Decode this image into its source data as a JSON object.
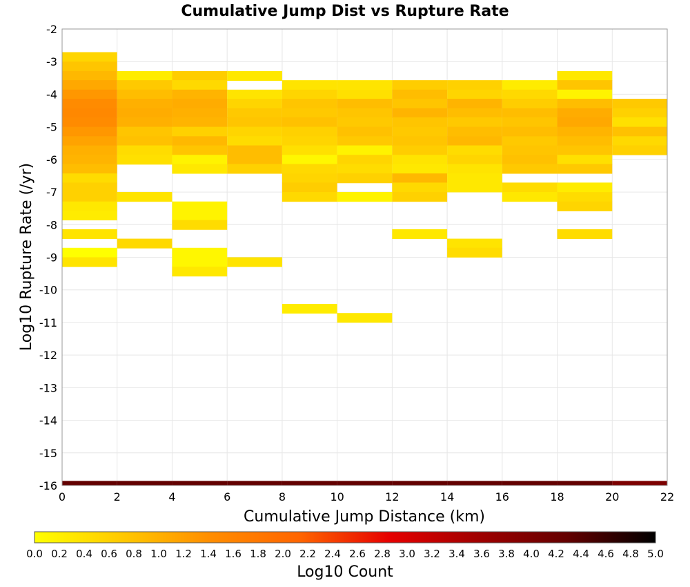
{
  "chart_data": {
    "type": "heatmap",
    "title": "Cumulative Jump Dist vs Rupture Rate",
    "xlabel": "Cumulative Jump Distance (km)",
    "ylabel": "Log10 Rupture Rate (/yr)",
    "xlim": [
      0,
      22
    ],
    "ylim": [
      -16,
      -2
    ],
    "x_ticks": [
      "0",
      "2",
      "4",
      "6",
      "8",
      "10",
      "12",
      "14",
      "16",
      "18",
      "20",
      "22"
    ],
    "y_ticks": [
      "-2",
      "-3",
      "-4",
      "-5",
      "-6",
      "-7",
      "-8",
      "-9",
      "-10",
      "-11",
      "-12",
      "-13",
      "-14",
      "-15",
      "-16"
    ],
    "x_bin_width": 2,
    "y_bin_height": 0.286,
    "colorbar": {
      "label": "Log10 Count",
      "range": [
        0.0,
        5.0
      ],
      "ticks": [
        "0.0",
        "0.2",
        "0.4",
        "0.6",
        "0.8",
        "1.0",
        "1.2",
        "1.4",
        "1.6",
        "1.8",
        "2.0",
        "2.2",
        "2.4",
        "2.6",
        "2.8",
        "3.0",
        "3.2",
        "3.4",
        "3.6",
        "3.8",
        "4.0",
        "4.2",
        "4.4",
        "4.6",
        "4.8",
        "5.0"
      ],
      "colors": [
        "#ffff00",
        "#ffc800",
        "#ff8c00",
        "#ff6400",
        "#e60000",
        "#a00000",
        "#640000",
        "#000000"
      ]
    },
    "cells": [
      {
        "x": 0,
        "y": -2.71,
        "v": 0.55
      },
      {
        "x": 0,
        "y": -3.0,
        "v": 0.75
      },
      {
        "x": 0,
        "y": -3.29,
        "v": 0.9
      },
      {
        "x": 0,
        "y": -3.57,
        "v": 1.1
      },
      {
        "x": 0,
        "y": -3.86,
        "v": 1.3
      },
      {
        "x": 0,
        "y": -4.14,
        "v": 1.45
      },
      {
        "x": 0,
        "y": -4.43,
        "v": 1.5
      },
      {
        "x": 0,
        "y": -4.71,
        "v": 1.45
      },
      {
        "x": 0,
        "y": -5.0,
        "v": 1.3
      },
      {
        "x": 0,
        "y": -5.29,
        "v": 1.15
      },
      {
        "x": 0,
        "y": -5.57,
        "v": 1.0
      },
      {
        "x": 0,
        "y": -5.86,
        "v": 0.95
      },
      {
        "x": 0,
        "y": -6.14,
        "v": 0.85
      },
      {
        "x": 0,
        "y": -6.43,
        "v": 0.45
      },
      {
        "x": 0,
        "y": -6.71,
        "v": 0.6
      },
      {
        "x": 0,
        "y": -7.0,
        "v": 0.6
      },
      {
        "x": 0,
        "y": -7.29,
        "v": 0.3
      },
      {
        "x": 0,
        "y": -7.57,
        "v": 0.25
      },
      {
        "x": 0,
        "y": -8.14,
        "v": 0.35
      },
      {
        "x": 0,
        "y": -8.71,
        "v": 0.0
      },
      {
        "x": 0,
        "y": -9.0,
        "v": 0.35
      },
      {
        "x": 2,
        "y": -3.29,
        "v": 0.25
      },
      {
        "x": 2,
        "y": -3.57,
        "v": 0.7
      },
      {
        "x": 2,
        "y": -3.86,
        "v": 0.85
      },
      {
        "x": 2,
        "y": -4.14,
        "v": 1.0
      },
      {
        "x": 2,
        "y": -4.43,
        "v": 1.05
      },
      {
        "x": 2,
        "y": -4.71,
        "v": 1.0
      },
      {
        "x": 2,
        "y": -5.0,
        "v": 0.75
      },
      {
        "x": 2,
        "y": -5.29,
        "v": 0.8
      },
      {
        "x": 2,
        "y": -5.57,
        "v": 0.45
      },
      {
        "x": 2,
        "y": -5.86,
        "v": 0.4
      },
      {
        "x": 2,
        "y": -7.0,
        "v": 0.35
      },
      {
        "x": 2,
        "y": -8.43,
        "v": 0.5
      },
      {
        "x": 4,
        "y": -3.29,
        "v": 0.65
      },
      {
        "x": 4,
        "y": -3.57,
        "v": 0.5
      },
      {
        "x": 4,
        "y": -3.86,
        "v": 0.95
      },
      {
        "x": 4,
        "y": -4.14,
        "v": 1.05
      },
      {
        "x": 4,
        "y": -4.43,
        "v": 1.0
      },
      {
        "x": 4,
        "y": -4.71,
        "v": 0.95
      },
      {
        "x": 4,
        "y": -5.0,
        "v": 0.6
      },
      {
        "x": 4,
        "y": -5.29,
        "v": 0.9
      },
      {
        "x": 4,
        "y": -5.57,
        "v": 0.75
      },
      {
        "x": 4,
        "y": -5.86,
        "v": 0.15
      },
      {
        "x": 4,
        "y": -6.14,
        "v": 0.3
      },
      {
        "x": 4,
        "y": -7.29,
        "v": 0.15
      },
      {
        "x": 4,
        "y": -7.57,
        "v": 0.15
      },
      {
        "x": 4,
        "y": -7.86,
        "v": 0.45
      },
      {
        "x": 4,
        "y": -8.71,
        "v": 0.1
      },
      {
        "x": 4,
        "y": -9.0,
        "v": 0.1
      },
      {
        "x": 4,
        "y": -9.29,
        "v": 0.3
      },
      {
        "x": 6,
        "y": -3.29,
        "v": 0.3
      },
      {
        "x": 6,
        "y": -3.86,
        "v": 0.35
      },
      {
        "x": 6,
        "y": -4.14,
        "v": 0.55
      },
      {
        "x": 6,
        "y": -4.43,
        "v": 0.7
      },
      {
        "x": 6,
        "y": -4.71,
        "v": 0.75
      },
      {
        "x": 6,
        "y": -5.0,
        "v": 0.55
      },
      {
        "x": 6,
        "y": -5.29,
        "v": 0.45
      },
      {
        "x": 6,
        "y": -5.57,
        "v": 0.85
      },
      {
        "x": 6,
        "y": -5.86,
        "v": 0.85
      },
      {
        "x": 6,
        "y": -6.14,
        "v": 0.6
      },
      {
        "x": 6,
        "y": -9.0,
        "v": 0.35
      },
      {
        "x": 8,
        "y": -3.57,
        "v": 0.35
      },
      {
        "x": 8,
        "y": -3.86,
        "v": 0.55
      },
      {
        "x": 8,
        "y": -4.14,
        "v": 0.75
      },
      {
        "x": 8,
        "y": -4.43,
        "v": 0.7
      },
      {
        "x": 8,
        "y": -4.71,
        "v": 0.8
      },
      {
        "x": 8,
        "y": -5.0,
        "v": 0.6
      },
      {
        "x": 8,
        "y": -5.29,
        "v": 0.55
      },
      {
        "x": 8,
        "y": -5.57,
        "v": 0.4
      },
      {
        "x": 8,
        "y": -5.86,
        "v": 0.1
      },
      {
        "x": 8,
        "y": -6.14,
        "v": 0.5
      },
      {
        "x": 8,
        "y": -6.43,
        "v": 0.55
      },
      {
        "x": 8,
        "y": -6.71,
        "v": 0.65
      },
      {
        "x": 8,
        "y": -7.0,
        "v": 0.5
      },
      {
        "x": 8,
        "y": -10.43,
        "v": 0.25
      },
      {
        "x": 10,
        "y": -3.57,
        "v": 0.35
      },
      {
        "x": 10,
        "y": -3.86,
        "v": 0.4
      },
      {
        "x": 10,
        "y": -4.14,
        "v": 0.85
      },
      {
        "x": 10,
        "y": -4.43,
        "v": 0.75
      },
      {
        "x": 10,
        "y": -4.71,
        "v": 0.7
      },
      {
        "x": 10,
        "y": -5.0,
        "v": 0.8
      },
      {
        "x": 10,
        "y": -5.29,
        "v": 0.7
      },
      {
        "x": 10,
        "y": -5.57,
        "v": 0.15
      },
      {
        "x": 10,
        "y": -5.86,
        "v": 0.55
      },
      {
        "x": 10,
        "y": -6.14,
        "v": 0.45
      },
      {
        "x": 10,
        "y": -6.43,
        "v": 0.6
      },
      {
        "x": 10,
        "y": -7.0,
        "v": 0.15
      },
      {
        "x": 10,
        "y": -10.71,
        "v": 0.3
      },
      {
        "x": 12,
        "y": -3.57,
        "v": 0.65
      },
      {
        "x": 12,
        "y": -3.86,
        "v": 0.85
      },
      {
        "x": 12,
        "y": -4.14,
        "v": 0.75
      },
      {
        "x": 12,
        "y": -4.43,
        "v": 0.95
      },
      {
        "x": 12,
        "y": -4.71,
        "v": 0.75
      },
      {
        "x": 12,
        "y": -5.0,
        "v": 0.7
      },
      {
        "x": 12,
        "y": -5.29,
        "v": 0.75
      },
      {
        "x": 12,
        "y": -5.57,
        "v": 0.65
      },
      {
        "x": 12,
        "y": -5.86,
        "v": 0.35
      },
      {
        "x": 12,
        "y": -6.14,
        "v": 0.3
      },
      {
        "x": 12,
        "y": -6.43,
        "v": 0.9
      },
      {
        "x": 12,
        "y": -6.71,
        "v": 0.5
      },
      {
        "x": 12,
        "y": -7.0,
        "v": 0.6
      },
      {
        "x": 12,
        "y": -8.14,
        "v": 0.3
      },
      {
        "x": 14,
        "y": -3.57,
        "v": 0.6
      },
      {
        "x": 14,
        "y": -3.86,
        "v": 0.55
      },
      {
        "x": 14,
        "y": -4.14,
        "v": 0.95
      },
      {
        "x": 14,
        "y": -4.43,
        "v": 0.85
      },
      {
        "x": 14,
        "y": -4.71,
        "v": 0.7
      },
      {
        "x": 14,
        "y": -5.0,
        "v": 0.85
      },
      {
        "x": 14,
        "y": -5.29,
        "v": 0.9
      },
      {
        "x": 14,
        "y": -5.57,
        "v": 0.45
      },
      {
        "x": 14,
        "y": -5.86,
        "v": 0.55
      },
      {
        "x": 14,
        "y": -6.14,
        "v": 0.35
      },
      {
        "x": 14,
        "y": -6.43,
        "v": 0.3
      },
      {
        "x": 14,
        "y": -6.71,
        "v": 0.3
      },
      {
        "x": 14,
        "y": -8.43,
        "v": 0.35
      },
      {
        "x": 14,
        "y": -8.71,
        "v": 0.45
      },
      {
        "x": 16,
        "y": -3.57,
        "v": 0.25
      },
      {
        "x": 16,
        "y": -3.86,
        "v": 0.5
      },
      {
        "x": 16,
        "y": -4.14,
        "v": 0.65
      },
      {
        "x": 16,
        "y": -4.43,
        "v": 0.85
      },
      {
        "x": 16,
        "y": -4.71,
        "v": 0.75
      },
      {
        "x": 16,
        "y": -5.0,
        "v": 0.85
      },
      {
        "x": 16,
        "y": -5.29,
        "v": 0.7
      },
      {
        "x": 16,
        "y": -5.57,
        "v": 0.75
      },
      {
        "x": 16,
        "y": -5.86,
        "v": 0.8
      },
      {
        "x": 16,
        "y": -6.14,
        "v": 0.7
      },
      {
        "x": 16,
        "y": -6.71,
        "v": 0.45
      },
      {
        "x": 16,
        "y": -7.0,
        "v": 0.3
      },
      {
        "x": 18,
        "y": -3.29,
        "v": 0.3
      },
      {
        "x": 18,
        "y": -3.57,
        "v": 0.75
      },
      {
        "x": 18,
        "y": -3.86,
        "v": 0.15
      },
      {
        "x": 18,
        "y": -4.14,
        "v": 0.85
      },
      {
        "x": 18,
        "y": -4.43,
        "v": 1.05
      },
      {
        "x": 18,
        "y": -4.71,
        "v": 1.1
      },
      {
        "x": 18,
        "y": -5.0,
        "v": 0.95
      },
      {
        "x": 18,
        "y": -5.29,
        "v": 0.85
      },
      {
        "x": 18,
        "y": -5.57,
        "v": 0.75
      },
      {
        "x": 18,
        "y": -5.86,
        "v": 0.4
      },
      {
        "x": 18,
        "y": -6.14,
        "v": 0.7
      },
      {
        "x": 18,
        "y": -6.71,
        "v": 0.25
      },
      {
        "x": 18,
        "y": -7.0,
        "v": 0.45
      },
      {
        "x": 18,
        "y": -7.29,
        "v": 0.55
      },
      {
        "x": 18,
        "y": -8.14,
        "v": 0.45
      },
      {
        "x": 20,
        "y": -4.14,
        "v": 0.7
      },
      {
        "x": 20,
        "y": -4.43,
        "v": 0.6
      },
      {
        "x": 20,
        "y": -4.71,
        "v": 0.4
      },
      {
        "x": 20,
        "y": -5.0,
        "v": 0.8
      },
      {
        "x": 20,
        "y": -5.29,
        "v": 0.5
      },
      {
        "x": 20,
        "y": -5.57,
        "v": 0.6
      }
    ],
    "bottom_strip": [
      {
        "x": 0,
        "v": 4.3
      },
      {
        "x": 2,
        "v": 4.3
      },
      {
        "x": 4,
        "v": 4.3
      },
      {
        "x": 6,
        "v": 4.3
      },
      {
        "x": 8,
        "v": 4.3
      },
      {
        "x": 10,
        "v": 4.3
      },
      {
        "x": 12,
        "v": 4.3
      },
      {
        "x": 14,
        "v": 4.3
      },
      {
        "x": 16,
        "v": 4.3
      },
      {
        "x": 18,
        "v": 4.3
      },
      {
        "x": 20,
        "v": 4.0
      }
    ]
  }
}
